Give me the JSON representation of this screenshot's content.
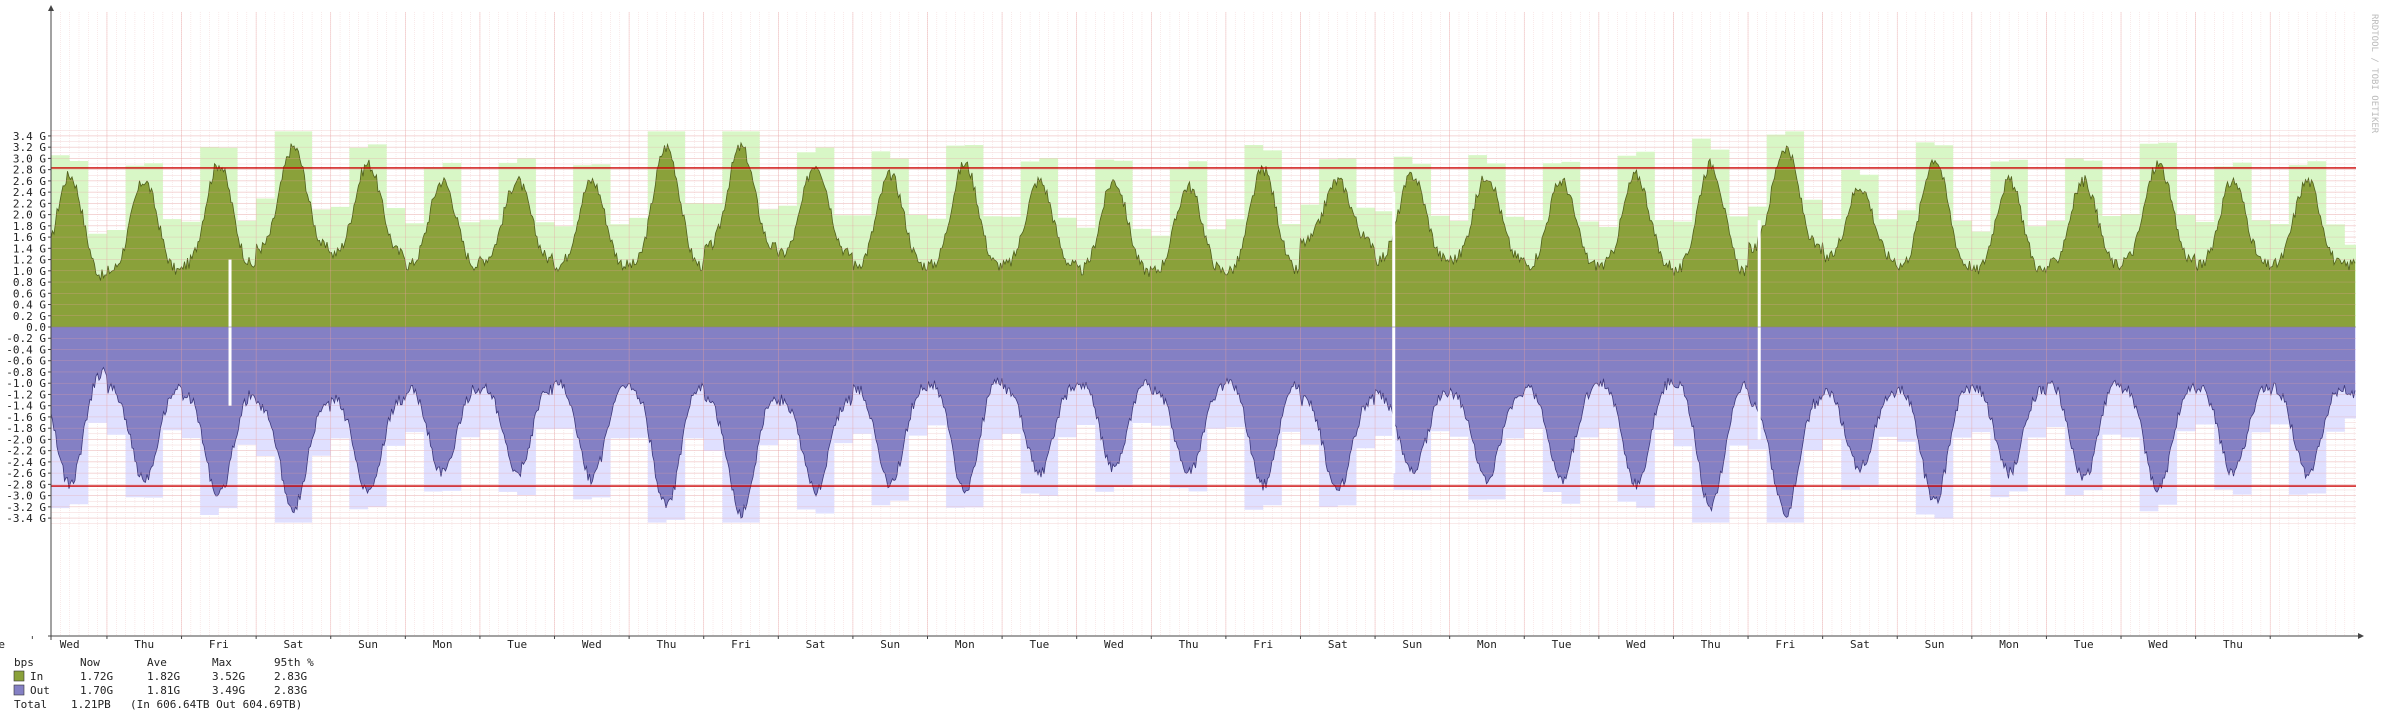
{
  "chart_data": {
    "type": "area",
    "title": "",
    "xlabel": "",
    "ylabel": "",
    "unit": "bps",
    "ylim": [
      -3.5,
      3.5
    ],
    "y_ticks": [
      3.4,
      3.2,
      3.0,
      2.8,
      2.6,
      2.4,
      2.2,
      2.0,
      1.8,
      1.6,
      1.4,
      1.2,
      1.0,
      0.8,
      0.6,
      0.4,
      0.2,
      0.0,
      -0.2,
      -0.4,
      -0.6,
      -0.8,
      -1.0,
      -1.2,
      -1.4,
      -1.6,
      -1.8,
      -2.0,
      -2.2,
      -2.4,
      -2.6,
      -2.8,
      -3.0,
      -3.2,
      -3.4
    ],
    "y_tick_labels": [
      "3.4 G",
      "3.2 G",
      "3.0 G",
      "2.8 G",
      "2.6 G",
      "2.4 G",
      "2.2 G",
      "2.0 G",
      "1.8 G",
      "1.6 G",
      "1.4 G",
      "1.2 G",
      "1.0 G",
      "0.8 G",
      "0.6 G",
      "0.4 G",
      "0.2 G",
      "0.0",
      "-0.2 G",
      "-0.4 G",
      "-0.6 G",
      "-0.8 G",
      "-1.0 G",
      "-1.2 G",
      "-1.4 G",
      "-1.6 G",
      "-1.8 G",
      "-2.0 G",
      "-2.2 G",
      "-2.4 G",
      "-2.6 G",
      "-2.8 G",
      "-3.0 G",
      "-3.2 G",
      "-3.4 G"
    ],
    "x_tick_labels": [
      "Tue",
      "Wed",
      "Thu",
      "Fri",
      "Sat",
      "Sun",
      "Mon",
      "Tue",
      "Wed",
      "Thu",
      "Fri",
      "Sat",
      "Sun",
      "Mon",
      "Tue",
      "Wed",
      "Thu",
      "Fri",
      "Sat",
      "Sun",
      "Mon",
      "Tue",
      "Wed",
      "Thu",
      "Fri",
      "Sat",
      "Sun",
      "Mon",
      "Tue",
      "Wed",
      "Thu"
    ],
    "percentile_95": 2.83,
    "grid": true,
    "series": [
      {
        "name": "In",
        "color": "#8aa13a",
        "max_color": "#d8f7c6",
        "daily_peaks": [
          1.7,
          2.7,
          2.6,
          2.9,
          3.2,
          2.9,
          2.6,
          2.6,
          2.6,
          3.2,
          3.2,
          2.9,
          2.7,
          2.9,
          2.6,
          2.6,
          2.5,
          2.8,
          2.6,
          2.7,
          2.7,
          2.6,
          2.7,
          2.9,
          3.2,
          2.5,
          3.0,
          2.6,
          2.6,
          2.9,
          2.6
        ],
        "daily_troughs": [
          1.2,
          0.9,
          1.0,
          1.1,
          1.4,
          1.3,
          1.1,
          1.2,
          1.1,
          1.1,
          1.4,
          1.3,
          1.1,
          1.1,
          1.1,
          1.0,
          1.0,
          1.0,
          1.5,
          1.2,
          1.2,
          1.1,
          1.1,
          1.0,
          1.4,
          1.2,
          1.1,
          1.0,
          1.1,
          1.2,
          1.1
        ]
      },
      {
        "name": "Out",
        "color": "#8480c4",
        "max_color": "#e0e0ff",
        "daily_peaks": [
          1.9,
          2.8,
          2.7,
          3.0,
          3.2,
          2.9,
          2.6,
          2.6,
          2.7,
          3.2,
          3.3,
          2.9,
          2.8,
          2.9,
          2.6,
          2.5,
          2.6,
          2.8,
          2.9,
          2.6,
          2.7,
          2.7,
          2.8,
          3.2,
          3.3,
          2.5,
          3.1,
          2.6,
          2.7,
          2.9,
          2.6
        ],
        "daily_troughs": [
          1.2,
          0.8,
          1.1,
          1.2,
          1.4,
          1.3,
          1.1,
          1.1,
          1.0,
          1.1,
          1.3,
          1.3,
          1.1,
          1.0,
          1.1,
          1.0,
          1.1,
          1.0,
          1.3,
          1.2,
          1.2,
          1.1,
          1.0,
          1.0,
          1.3,
          1.2,
          1.1,
          1.1,
          1.0,
          1.1,
          1.1
        ]
      }
    ],
    "legend": {
      "header": [
        "bps",
        "Now",
        "Ave",
        "Max",
        "95th %"
      ],
      "rows": [
        {
          "name": "In",
          "color": "#8aa13a",
          "now": "1.72G",
          "ave": "1.82G",
          "max": "3.52G",
          "p95": "2.83G"
        },
        {
          "name": "Out",
          "color": "#8480c4",
          "now": "1.70G",
          "ave": "1.81G",
          "max": "3.49G",
          "p95": "2.83G"
        }
      ],
      "total_label": "Total",
      "total_value": "1.21PB",
      "total_detail": "(In 606.64TB  Out 604.69TB)"
    },
    "watermark": "RRDTOOL / TOBI OETIKER"
  }
}
